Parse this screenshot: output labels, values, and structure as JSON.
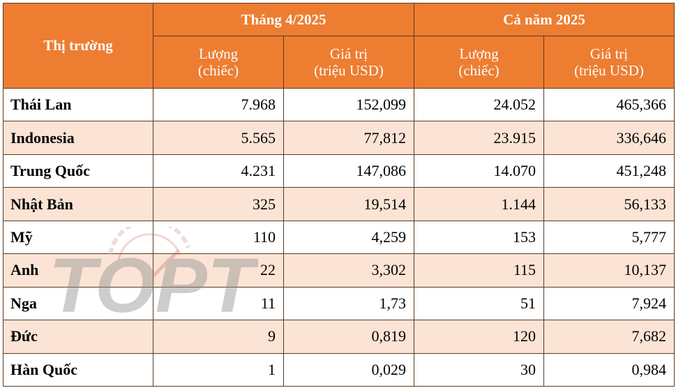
{
  "table": {
    "header_market": "Thị trường",
    "group_april": "Tháng 4/2025",
    "group_year": "Cả năm 2025",
    "col_qty_line1": "Lượng",
    "col_qty_line2": "(chiếc)",
    "col_value_line1": "Giá trị",
    "col_value_line2": "(triệu USD)",
    "rows": [
      {
        "market": "Thái Lan",
        "apr_qty": "7.968",
        "apr_value": "152,099",
        "year_qty": "24.052",
        "year_value": "465,366"
      },
      {
        "market": "Indonesia",
        "apr_qty": "5.565",
        "apr_value": "77,812",
        "year_qty": "23.915",
        "year_value": "336,646"
      },
      {
        "market": "Trung Quốc",
        "apr_qty": "4.231",
        "apr_value": "147,086",
        "year_qty": "14.070",
        "year_value": "451,248"
      },
      {
        "market": "Nhật Bản",
        "apr_qty": "325",
        "apr_value": "19,514",
        "year_qty": "1.144",
        "year_value": "56,133"
      },
      {
        "market": "Mỹ",
        "apr_qty": "110",
        "apr_value": "4,259",
        "year_qty": "153",
        "year_value": "5,777"
      },
      {
        "market": "Anh",
        "apr_qty": "22",
        "apr_value": "3,302",
        "year_qty": "115",
        "year_value": "10,137"
      },
      {
        "market": "Nga",
        "apr_qty": "11",
        "apr_value": "1,73",
        "year_qty": "51",
        "year_value": "7,924"
      },
      {
        "market": "Đức",
        "apr_qty": "9",
        "apr_value": "0,819",
        "year_qty": "120",
        "year_value": "7,682"
      },
      {
        "market": "Hàn Quốc",
        "apr_qty": "1",
        "apr_value": "0,029",
        "year_qty": "30",
        "year_value": "0,984"
      }
    ]
  },
  "colors": {
    "header_bg": "#ed7d31",
    "shaded_row_bg": "#fbe4d5",
    "border": "#5a3a20"
  },
  "watermark": {
    "text": "TOPT",
    "icon": "speedometer-logo"
  }
}
